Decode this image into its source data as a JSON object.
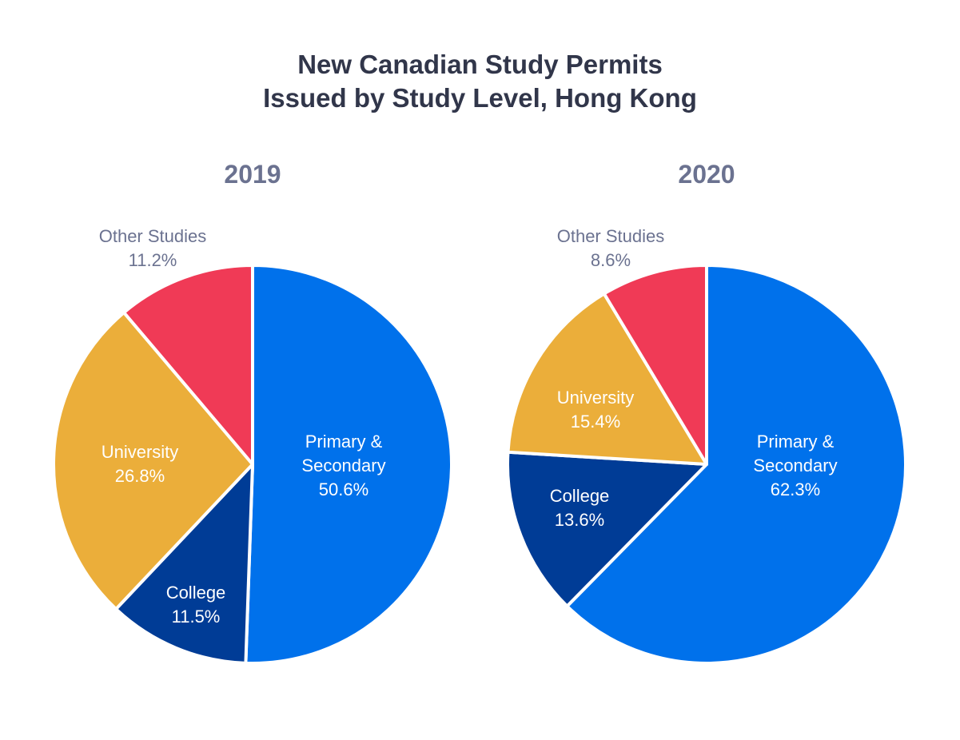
{
  "chart_data": {
    "title": [
      "New Canadian Study Permits",
      "Issued by Study Level, Hong Kong"
    ],
    "type": "pie",
    "colors": {
      "Primary & Secondary": "#0071eb",
      "College": "#003c96",
      "University": "#ebae3a",
      "Other Studies": "#f03a56"
    },
    "charts": [
      {
        "year": "2019",
        "slices": [
          {
            "label": "Primary & Secondary",
            "value": 50.6,
            "display": "50.6%"
          },
          {
            "label": "College",
            "value": 11.5,
            "display": "11.5%"
          },
          {
            "label": "University",
            "value": 26.8,
            "display": "26.8%"
          },
          {
            "label": "Other Studies",
            "value": 11.2,
            "display": "11.2%"
          }
        ]
      },
      {
        "year": "2020",
        "slices": [
          {
            "label": "Primary & Secondary",
            "value": 62.3,
            "display": "62.3%"
          },
          {
            "label": "College",
            "value": 13.6,
            "display": "13.6%"
          },
          {
            "label": "University",
            "value": 15.4,
            "display": "15.4%"
          },
          {
            "label": "Other Studies",
            "value": 8.6,
            "display": "8.6%"
          }
        ]
      }
    ]
  }
}
